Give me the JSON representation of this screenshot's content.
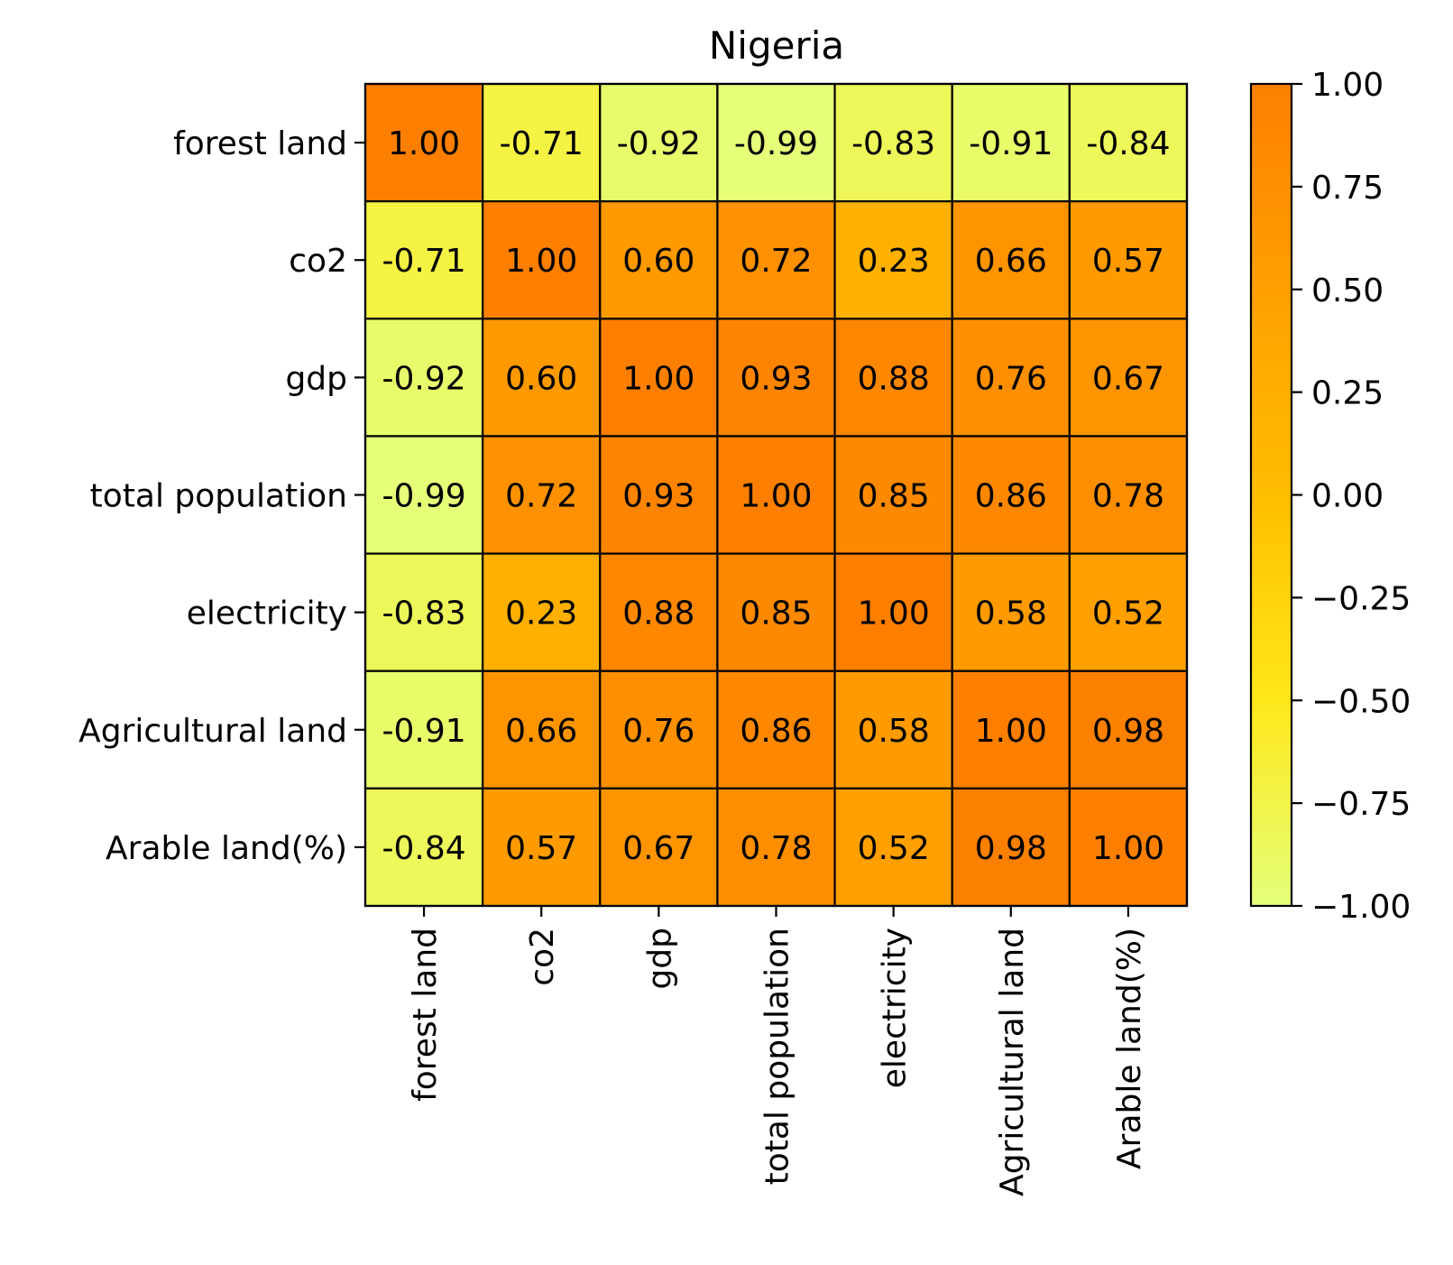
{
  "chart_data": {
    "type": "heatmap",
    "title": "Nigeria",
    "xlabel": "",
    "ylabel": "",
    "row_labels": [
      "forest land",
      "co2",
      "gdp",
      "total population",
      "electricity",
      "Agricultural land",
      "Arable land(%)"
    ],
    "col_labels": [
      "forest land",
      "co2",
      "gdp",
      "total population",
      "electricity",
      "Agricultural land",
      "Arable land(%)"
    ],
    "values": [
      [
        1.0,
        -0.71,
        -0.92,
        -0.99,
        -0.83,
        -0.91,
        -0.84
      ],
      [
        -0.71,
        1.0,
        0.6,
        0.72,
        0.23,
        0.66,
        0.57
      ],
      [
        -0.92,
        0.6,
        1.0,
        0.93,
        0.88,
        0.76,
        0.67
      ],
      [
        -0.99,
        0.72,
        0.93,
        1.0,
        0.85,
        0.86,
        0.78
      ],
      [
        -0.83,
        0.23,
        0.88,
        0.85,
        1.0,
        0.58,
        0.52
      ],
      [
        -0.91,
        0.66,
        0.76,
        0.86,
        0.58,
        1.0,
        0.98
      ],
      [
        -0.84,
        0.57,
        0.67,
        0.78,
        0.52,
        0.98,
        1.0
      ]
    ],
    "cell_labels": [
      [
        "1.00",
        "-0.71",
        "-0.92",
        "-0.99",
        "-0.83",
        "-0.91",
        "-0.84"
      ],
      [
        "-0.71",
        "1.00",
        "0.60",
        "0.72",
        "0.23",
        "0.66",
        "0.57"
      ],
      [
        "-0.92",
        "0.60",
        "1.00",
        "0.93",
        "0.88",
        "0.76",
        "0.67"
      ],
      [
        "-0.99",
        "0.72",
        "0.93",
        "1.00",
        "0.85",
        "0.86",
        "0.78"
      ],
      [
        "-0.83",
        "0.23",
        "0.88",
        "0.85",
        "1.00",
        "0.58",
        "0.52"
      ],
      [
        "-0.91",
        "0.66",
        "0.76",
        "0.86",
        "0.58",
        "1.00",
        "0.98"
      ],
      [
        "-0.84",
        "0.57",
        "0.67",
        "0.78",
        "0.52",
        "0.98",
        "1.00"
      ]
    ],
    "colorbar": {
      "range": [
        -1.0,
        1.0
      ],
      "ticks": [
        1.0,
        0.75,
        0.5,
        0.25,
        0.0,
        -0.25,
        -0.5,
        -0.75,
        -1.0
      ],
      "tick_labels": [
        "1.00",
        "0.75",
        "0.50",
        "0.25",
        "0.00",
        "−0.25",
        "−0.50",
        "−0.75",
        "−1.00"
      ],
      "colormap": "Wistia",
      "colormap_stops": [
        "#e4ff7a",
        "#ffe81a",
        "#ffbd00",
        "#ffa000",
        "#fc7f00"
      ]
    },
    "grid": false,
    "cell_border_color": "#000000"
  }
}
